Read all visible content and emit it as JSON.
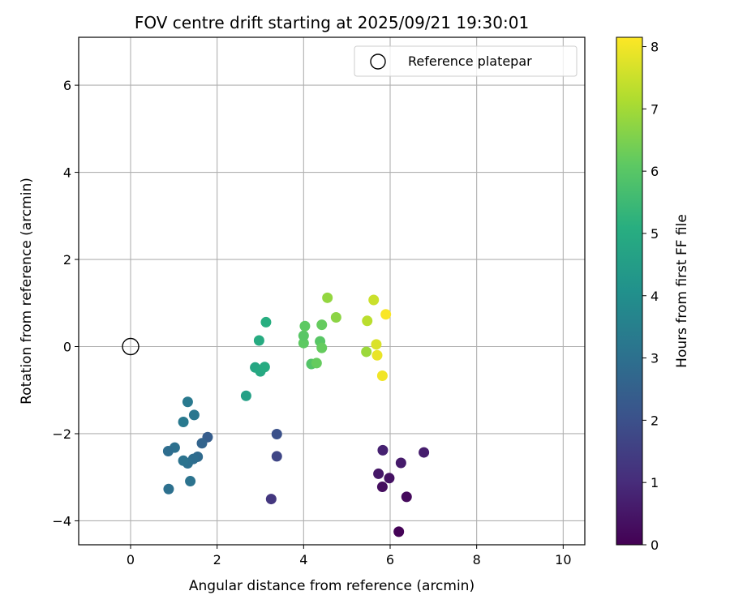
{
  "chart_data": {
    "type": "scatter",
    "title": "FOV centre drift starting at 2025/09/21 19:30:01",
    "xlabel": "Angular distance from reference (arcmin)",
    "ylabel": "Rotation from reference (arcmin)",
    "xlim": [
      -1.2,
      10.5
    ],
    "ylim": [
      -4.55,
      7.1
    ],
    "xticks": [
      0,
      2,
      4,
      6,
      8,
      10
    ],
    "yticks": [
      -4,
      -2,
      0,
      2,
      4,
      6
    ],
    "grid": true,
    "legend": {
      "position": "top-right",
      "entries": [
        "Reference platepar"
      ]
    },
    "reference": {
      "x": 0,
      "y": 0,
      "label": "Reference platepar"
    },
    "colorbar": {
      "label": "Hours from first FF file",
      "colormap": "viridis",
      "range": [
        0,
        8.15
      ],
      "ticks": [
        0,
        1,
        2,
        3,
        4,
        5,
        6,
        7,
        8
      ]
    },
    "series": [
      {
        "name": "FOV centre",
        "points": [
          {
            "x": 6.2,
            "y": -4.25,
            "c": 0.05
          },
          {
            "x": 6.38,
            "y": -3.45,
            "c": 0.2
          },
          {
            "x": 5.82,
            "y": -3.22,
            "c": 0.3
          },
          {
            "x": 5.98,
            "y": -3.02,
            "c": 0.4
          },
          {
            "x": 5.73,
            "y": -2.92,
            "c": 0.5
          },
          {
            "x": 6.25,
            "y": -2.67,
            "c": 0.6
          },
          {
            "x": 6.78,
            "y": -2.43,
            "c": 0.65
          },
          {
            "x": 5.83,
            "y": -2.38,
            "c": 0.75
          },
          {
            "x": 3.25,
            "y": -3.5,
            "c": 1.3
          },
          {
            "x": 3.38,
            "y": -2.52,
            "c": 1.7
          },
          {
            "x": 3.38,
            "y": -2.01,
            "c": 2.0
          },
          {
            "x": 1.78,
            "y": -2.08,
            "c": 2.4
          },
          {
            "x": 1.65,
            "y": -2.22,
            "c": 2.6
          },
          {
            "x": 1.55,
            "y": -2.53,
            "c": 2.8
          },
          {
            "x": 1.45,
            "y": -2.58,
            "c": 2.9
          },
          {
            "x": 1.32,
            "y": -2.68,
            "c": 3.0
          },
          {
            "x": 1.22,
            "y": -2.62,
            "c": 3.1
          },
          {
            "x": 1.02,
            "y": -2.32,
            "c": 3.0
          },
          {
            "x": 0.87,
            "y": -2.4,
            "c": 2.9
          },
          {
            "x": 0.88,
            "y": -3.27,
            "c": 3.0
          },
          {
            "x": 1.38,
            "y": -3.09,
            "c": 3.1
          },
          {
            "x": 1.22,
            "y": -1.73,
            "c": 3.3
          },
          {
            "x": 1.47,
            "y": -1.57,
            "c": 3.2
          },
          {
            "x": 1.32,
            "y": -1.27,
            "c": 3.3
          },
          {
            "x": 2.67,
            "y": -1.13,
            "c": 4.6
          },
          {
            "x": 2.88,
            "y": -0.48,
            "c": 4.8
          },
          {
            "x": 3.0,
            "y": -0.57,
            "c": 4.9
          },
          {
            "x": 3.1,
            "y": -0.47,
            "c": 5.0
          },
          {
            "x": 2.97,
            "y": 0.14,
            "c": 5.0
          },
          {
            "x": 3.13,
            "y": 0.56,
            "c": 5.1
          },
          {
            "x": 4.18,
            "y": -0.4,
            "c": 5.9
          },
          {
            "x": 4.3,
            "y": -0.38,
            "c": 6.2
          },
          {
            "x": 4.0,
            "y": 0.08,
            "c": 6.1
          },
          {
            "x": 4.0,
            "y": 0.25,
            "c": 6.0
          },
          {
            "x": 4.03,
            "y": 0.47,
            "c": 6.1
          },
          {
            "x": 4.38,
            "y": 0.12,
            "c": 6.0
          },
          {
            "x": 4.42,
            "y": -0.03,
            "c": 6.2
          },
          {
            "x": 4.42,
            "y": 0.5,
            "c": 6.2
          },
          {
            "x": 4.55,
            "y": 1.12,
            "c": 6.8
          },
          {
            "x": 4.75,
            "y": 0.67,
            "c": 6.7
          },
          {
            "x": 5.45,
            "y": -0.12,
            "c": 6.9
          },
          {
            "x": 5.47,
            "y": 0.59,
            "c": 7.3
          },
          {
            "x": 5.62,
            "y": 1.07,
            "c": 7.5
          },
          {
            "x": 5.68,
            "y": 0.05,
            "c": 7.7
          },
          {
            "x": 5.7,
            "y": -0.2,
            "c": 7.9
          },
          {
            "x": 5.82,
            "y": -0.67,
            "c": 8.0
          },
          {
            "x": 5.9,
            "y": 0.74,
            "c": 8.1
          }
        ]
      }
    ]
  }
}
